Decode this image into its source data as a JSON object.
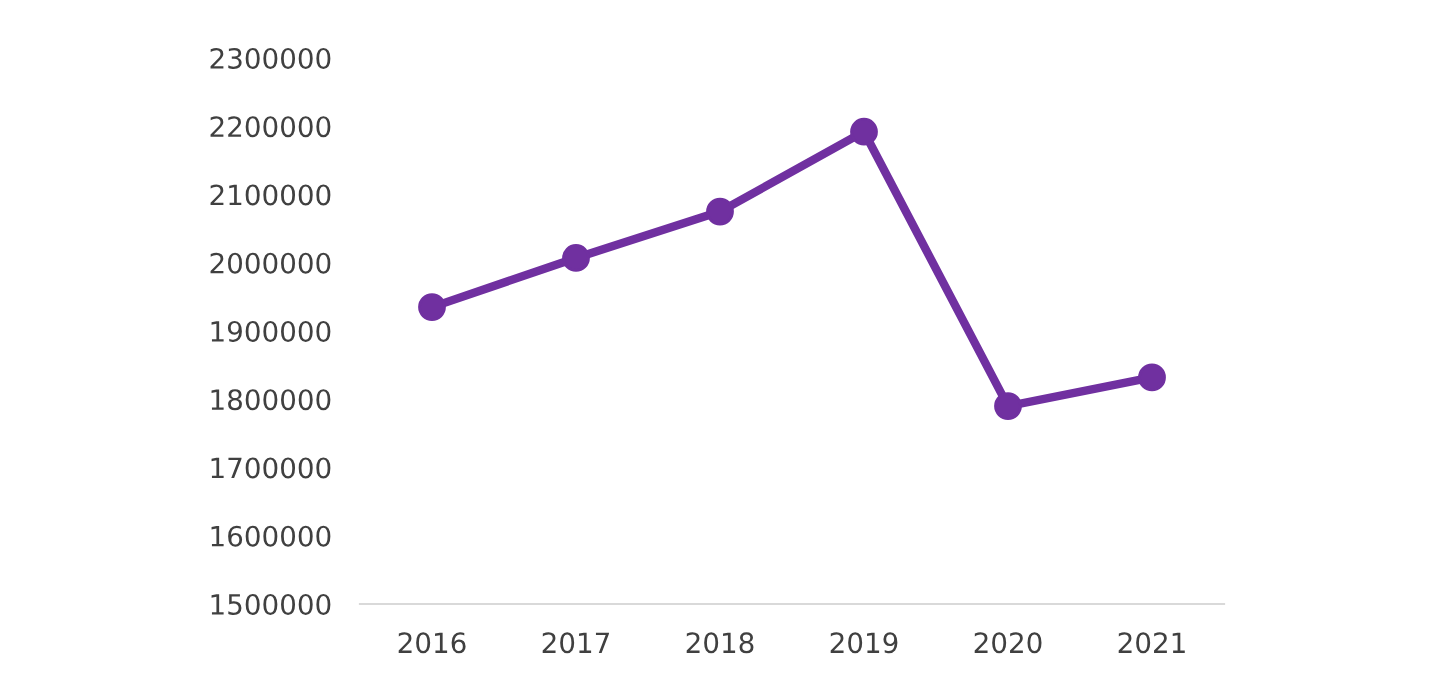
{
  "chart_data": {
    "type": "line",
    "categories": [
      "2016",
      "2017",
      "2018",
      "2019",
      "2020",
      "2021"
    ],
    "series": [
      {
        "color": "#7030a0",
        "values": [
          1935000,
          2007000,
          2075000,
          2192000,
          1790000,
          1832000
        ]
      }
    ],
    "ylim": [
      1500000,
      2300000
    ],
    "yticks": [
      1500000,
      1600000,
      1700000,
      1800000,
      1900000,
      2000000,
      2100000,
      2200000,
      2300000
    ],
    "marker": "circle",
    "line_style": "solid",
    "grid": false,
    "legend": false
  }
}
